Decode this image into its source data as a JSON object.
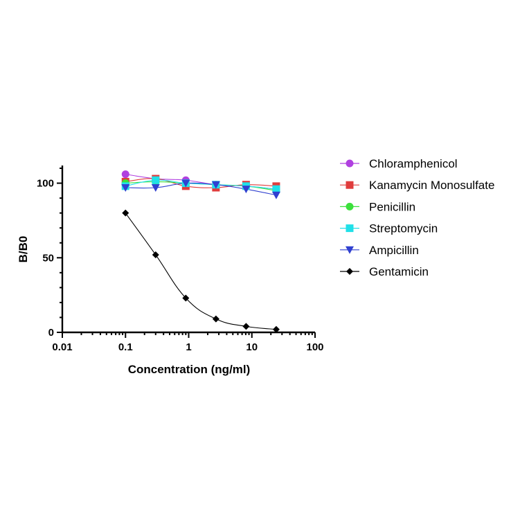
{
  "chart_data": {
    "type": "line",
    "xlabel": "Concentration (ng/ml)",
    "ylabel": "B/B0",
    "xscale": "log",
    "xlim": [
      0.01,
      100
    ],
    "ylim": [
      0,
      110
    ],
    "xticks": [
      {
        "value": 0.01,
        "label": "0.01"
      },
      {
        "value": 0.1,
        "label": "0.1"
      },
      {
        "value": 1,
        "label": "1"
      },
      {
        "value": 10,
        "label": "10"
      },
      {
        "value": 100,
        "label": "100"
      }
    ],
    "yticks": [
      {
        "value": 0,
        "label": "0"
      },
      {
        "value": 50,
        "label": "50"
      },
      {
        "value": 100,
        "label": "100"
      }
    ],
    "legend_position": "right",
    "grid": false,
    "x": [
      0.1,
      0.3,
      0.9,
      2.7,
      8.1,
      24.3
    ],
    "series": [
      {
        "name": "Chloramphenicol",
        "color": "#b040e0",
        "marker": "circle",
        "values": [
          106,
          103,
          102,
          99,
          98,
          96
        ]
      },
      {
        "name": "Kanamycin Monosulfate",
        "color": "#e03c3c",
        "marker": "square",
        "values": [
          101,
          103,
          98,
          97,
          99,
          98
        ]
      },
      {
        "name": "Penicillin",
        "color": "#3ce03c",
        "marker": "circle",
        "values": [
          100,
          101,
          100,
          99,
          98,
          95
        ]
      },
      {
        "name": "Streptomycin",
        "color": "#20e0e8",
        "marker": "square",
        "values": [
          98,
          102,
          100,
          99,
          98,
          96
        ]
      },
      {
        "name": "Ampicillin",
        "color": "#3040d0",
        "marker": "triangle-down",
        "values": [
          97,
          97,
          100,
          99,
          96,
          92
        ]
      },
      {
        "name": "Gentamicin",
        "color": "#000000",
        "marker": "diamond",
        "values": [
          80,
          52,
          23,
          9,
          4,
          2
        ]
      }
    ]
  }
}
